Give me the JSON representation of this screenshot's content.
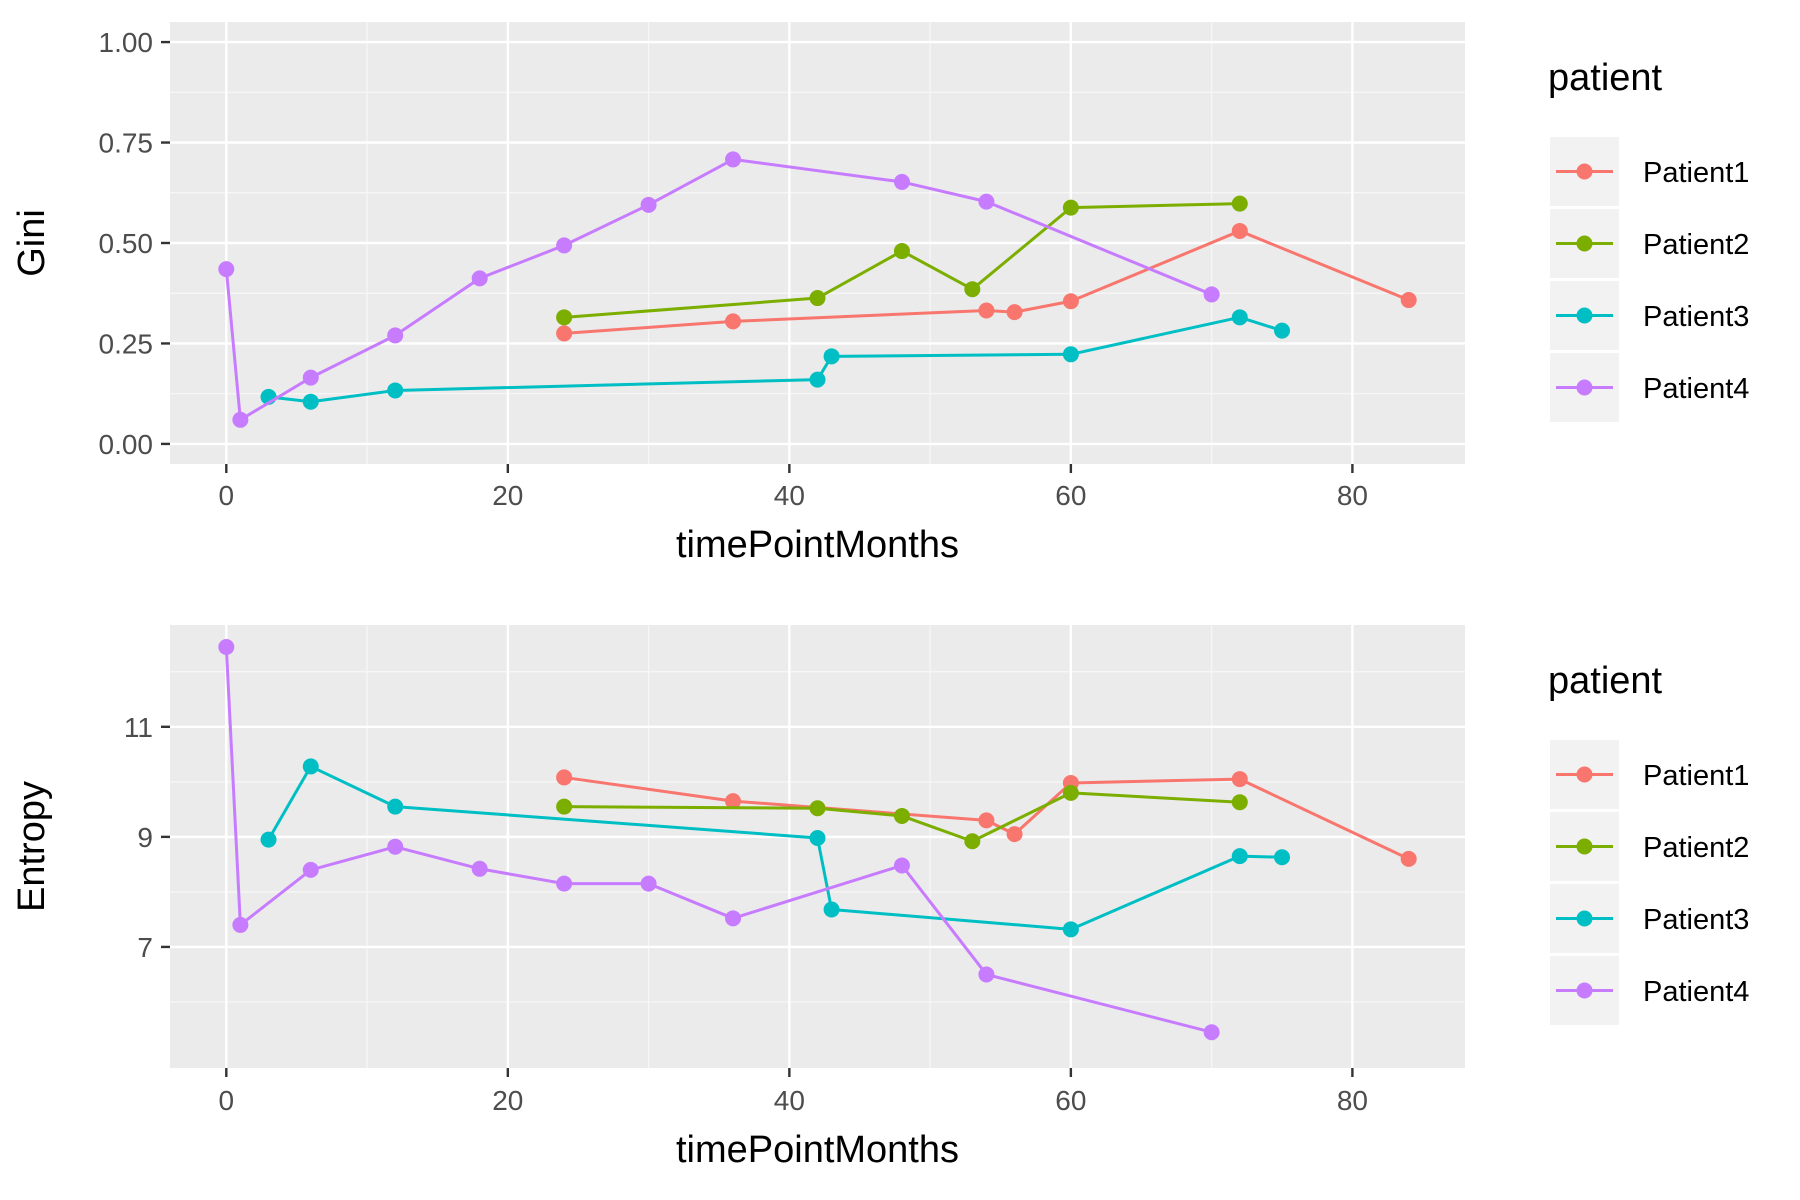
{
  "chart_data": [
    {
      "type": "line",
      "xlabel": "timePointMonths",
      "ylabel": "Gini",
      "xlim": [
        -4,
        88
      ],
      "ylim": [
        -0.05,
        1.05
      ],
      "xticks": [
        0,
        20,
        40,
        60,
        80
      ],
      "xtick_labels": [
        "0",
        "20",
        "40",
        "60",
        "80"
      ],
      "yticks": [
        0.0,
        0.25,
        0.5,
        0.75,
        1.0
      ],
      "ytick_labels": [
        "0.00",
        "0.25",
        "0.50",
        "0.75",
        "1.00"
      ],
      "grid": true,
      "legend": {
        "title": "patient",
        "position": "right"
      },
      "series": [
        {
          "name": "Patient1",
          "color": "#F8766D",
          "x": [
            24,
            36,
            54,
            56,
            60,
            72,
            84
          ],
          "y": [
            0.275,
            0.305,
            0.332,
            0.328,
            0.355,
            0.53,
            0.358
          ]
        },
        {
          "name": "Patient2",
          "color": "#7CAE00",
          "x": [
            24,
            42,
            48,
            53,
            60,
            72
          ],
          "y": [
            0.315,
            0.363,
            0.48,
            0.385,
            0.588,
            0.598
          ]
        },
        {
          "name": "Patient3",
          "color": "#00BFC4",
          "x": [
            3,
            6,
            12,
            42,
            43,
            60,
            72,
            75
          ],
          "y": [
            0.117,
            0.105,
            0.133,
            0.16,
            0.218,
            0.223,
            0.315,
            0.282
          ]
        },
        {
          "name": "Patient4",
          "color": "#C77CFF",
          "x": [
            0,
            1,
            6,
            12,
            18,
            24,
            30,
            36,
            48,
            54,
            70
          ],
          "y": [
            0.435,
            0.06,
            0.165,
            0.27,
            0.412,
            0.494,
            0.595,
            0.708,
            0.652,
            0.603,
            0.372
          ]
        }
      ]
    },
    {
      "type": "line",
      "xlabel": "timePointMonths",
      "ylabel": "Entropy",
      "xlim": [
        -4,
        88
      ],
      "ylim": [
        4.8,
        12.85
      ],
      "xticks": [
        0,
        20,
        40,
        60,
        80
      ],
      "xtick_labels": [
        "0",
        "20",
        "40",
        "60",
        "80"
      ],
      "yticks": [
        7,
        9,
        11
      ],
      "ytick_labels": [
        "7",
        "9",
        "11"
      ],
      "grid": true,
      "legend": {
        "title": "patient",
        "position": "right"
      },
      "series": [
        {
          "name": "Patient1",
          "color": "#F8766D",
          "x": [
            24,
            36,
            54,
            56,
            60,
            72,
            84
          ],
          "y": [
            10.08,
            9.65,
            9.3,
            9.05,
            9.98,
            10.05,
            8.6
          ]
        },
        {
          "name": "Patient2",
          "color": "#7CAE00",
          "x": [
            24,
            42,
            48,
            53,
            60,
            72
          ],
          "y": [
            9.55,
            9.52,
            9.38,
            8.92,
            9.8,
            9.63
          ]
        },
        {
          "name": "Patient3",
          "color": "#00BFC4",
          "x": [
            3,
            6,
            12,
            42,
            43,
            60,
            72,
            75
          ],
          "y": [
            8.95,
            10.28,
            9.55,
            8.98,
            7.68,
            7.32,
            8.65,
            8.63
          ]
        },
        {
          "name": "Patient4",
          "color": "#C77CFF",
          "x": [
            0,
            1,
            6,
            12,
            18,
            24,
            30,
            36,
            48,
            54,
            70
          ],
          "y": [
            12.45,
            7.4,
            8.4,
            8.82,
            8.42,
            8.15,
            8.15,
            7.52,
            8.48,
            6.5,
            5.45
          ]
        }
      ]
    }
  ]
}
